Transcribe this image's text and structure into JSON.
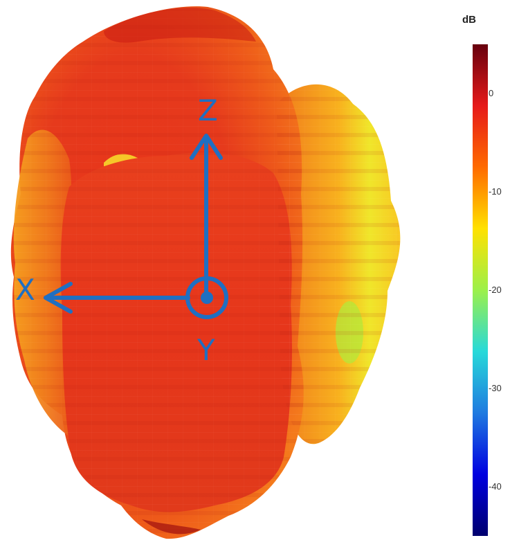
{
  "axes": {
    "x_label": "X",
    "y_label": "Y",
    "z_label": "Z"
  },
  "colorbar": {
    "title": "dB",
    "ticks": [
      "0",
      "-10",
      "-20",
      "-30",
      "-40"
    ],
    "tick_values": [
      0,
      -10,
      -20,
      -30,
      -40
    ],
    "range": [
      -45,
      5
    ],
    "colors": [
      "#67000d",
      "#e61a1a",
      "#ff6a00",
      "#ffe100",
      "#9cf04a",
      "#27d9d9",
      "#1f7ae0",
      "#0000e0",
      "#00006e"
    ]
  },
  "colors": {
    "axis": "#1f6fc2",
    "pattern_main": "#e8361c"
  }
}
